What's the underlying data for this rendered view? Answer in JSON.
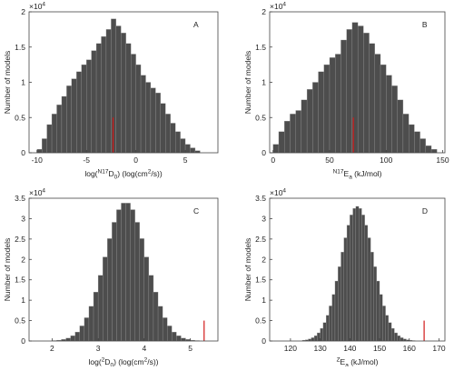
{
  "chart_data": [
    {
      "type": "histogram",
      "label": "A",
      "ylabel": "Number of models",
      "y_multiplier": [
        "×10",
        {
          "text": "4",
          "shift": "super"
        }
      ],
      "xlabel": [
        "log(",
        {
          "text": "N17",
          "shift": "super"
        },
        "D",
        {
          "text": "0",
          "shift": "sub"
        },
        ") (log(cm",
        {
          "text": "2",
          "shift": "super"
        },
        "/s))"
      ],
      "color": "#4d4d4d",
      "bins": [
        -10,
        -9.5,
        -9,
        -8.5,
        -8,
        -7.5,
        -7,
        -6.5,
        -6,
        -5.5,
        -5,
        -4.5,
        -4,
        -3.5,
        -3,
        -2.5,
        -2,
        -1.5,
        -1,
        -0.5,
        0,
        0.5,
        1,
        1.5,
        2,
        2.5,
        3,
        3.5,
        4,
        4.5,
        5,
        5.5,
        6,
        6.5
      ],
      "counts": [
        0.05,
        0.2,
        0.4,
        0.55,
        0.68,
        0.8,
        0.95,
        1.05,
        1.15,
        1.25,
        1.32,
        1.45,
        1.55,
        1.65,
        1.75,
        1.9,
        1.8,
        1.7,
        1.55,
        1.4,
        1.25,
        1.1,
        1.0,
        0.92,
        0.85,
        0.7,
        0.55,
        0.42,
        0.3,
        0.2,
        0.12,
        0.07,
        0.03
      ],
      "marker": {
        "x": -2.3,
        "height": 0.5,
        "color": "#d11a1a"
      },
      "xlim": [
        -10.8,
        8.3
      ],
      "xticks": [
        -10,
        -5,
        0,
        5
      ],
      "ylim": [
        0,
        2
      ],
      "yticks": [
        0,
        0.5,
        1,
        1.5,
        2
      ]
    },
    {
      "type": "histogram",
      "label": "B",
      "ylabel": "Number of models",
      "y_multiplier": [
        "×10",
        {
          "text": "4",
          "shift": "super"
        }
      ],
      "xlabel": [
        {
          "text": "N17",
          "shift": "super"
        },
        "E",
        {
          "text": "a",
          "shift": "sub"
        },
        " (kJ/mol)"
      ],
      "color": "#4d4d4d",
      "bins": [
        0,
        5,
        10,
        15,
        20,
        25,
        30,
        35,
        40,
        45,
        50,
        55,
        60,
        65,
        70,
        75,
        80,
        85,
        90,
        95,
        100,
        105,
        110,
        115,
        120,
        125,
        130,
        135,
        140,
        145
      ],
      "counts": [
        0.12,
        0.3,
        0.45,
        0.55,
        0.6,
        0.75,
        0.9,
        1.0,
        1.15,
        1.25,
        1.35,
        1.4,
        1.6,
        1.75,
        1.85,
        1.8,
        1.7,
        1.55,
        1.4,
        1.25,
        1.1,
        0.95,
        0.75,
        0.55,
        0.4,
        0.3,
        0.2,
        0.1,
        0.05
      ],
      "marker": {
        "x": 71,
        "height": 0.5,
        "color": "#d11a1a"
      },
      "xlim": [
        -3,
        152
      ],
      "xticks": [
        0,
        50,
        100,
        150
      ],
      "ylim": [
        0,
        2
      ],
      "yticks": [
        0,
        0.5,
        1,
        1.5,
        2
      ]
    },
    {
      "type": "histogram",
      "label": "C",
      "ylabel": "Number of models",
      "y_multiplier": [
        "×10",
        {
          "text": "4",
          "shift": "super"
        }
      ],
      "xlabel": [
        "log(",
        {
          "text": "2",
          "shift": "super"
        },
        "D",
        {
          "text": "0",
          "shift": "sub"
        },
        ") (log(cm",
        {
          "text": "2",
          "shift": "super"
        },
        "/s))"
      ],
      "color": "#4d4d4d",
      "bins": [
        1.8,
        1.9,
        2.0,
        2.1,
        2.2,
        2.3,
        2.4,
        2.5,
        2.6,
        2.7,
        2.8,
        2.9,
        3.0,
        3.1,
        3.2,
        3.3,
        3.4,
        3.5,
        3.6,
        3.7,
        3.8,
        3.9,
        4.0,
        4.1,
        4.2,
        4.3,
        4.4,
        4.5,
        4.6,
        4.7,
        4.8,
        4.9,
        5.0,
        5.1,
        5.2,
        5.3,
        5.4
      ],
      "counts": [
        0.0,
        0.0,
        0.01,
        0.02,
        0.04,
        0.07,
        0.13,
        0.22,
        0.37,
        0.57,
        0.85,
        1.2,
        1.61,
        2.06,
        2.51,
        2.91,
        3.22,
        3.38,
        3.38,
        3.22,
        2.91,
        2.51,
        2.06,
        1.61,
        1.2,
        0.85,
        0.57,
        0.37,
        0.22,
        0.13,
        0.07,
        0.04,
        0.02,
        0.01,
        0.0,
        0.0
      ],
      "marker": {
        "x": 5.3,
        "height": 0.5,
        "color": "#d11a1a"
      },
      "xlim": [
        1.5,
        5.6
      ],
      "xticks": [
        2,
        3,
        4,
        5
      ],
      "ylim": [
        0,
        3.5
      ],
      "yticks": [
        0,
        0.5,
        1,
        1.5,
        2,
        2.5,
        3,
        3.5
      ]
    },
    {
      "type": "histogram",
      "label": "D",
      "ylabel": "Number of models",
      "y_multiplier": [
        "×10",
        {
          "text": "4",
          "shift": "super"
        }
      ],
      "xlabel": [
        {
          "text": "Z",
          "shift": "super"
        },
        "E",
        {
          "text": "a",
          "shift": "sub"
        },
        " (kJ/mol)"
      ],
      "color": "#4d4d4d",
      "bins": [
        124,
        125,
        126,
        127,
        128,
        129,
        130,
        131,
        132,
        133,
        134,
        135,
        136,
        137,
        138,
        139,
        140,
        141,
        142,
        143,
        144,
        145,
        146,
        147,
        148,
        149,
        150,
        151,
        152,
        153,
        154,
        155,
        156,
        157,
        158,
        159,
        160,
        161,
        162
      ],
      "counts": [
        0.02,
        0.03,
        0.05,
        0.08,
        0.13,
        0.2,
        0.31,
        0.45,
        0.63,
        0.86,
        1.14,
        1.47,
        1.82,
        2.18,
        2.53,
        2.84,
        3.09,
        3.25,
        3.3,
        3.25,
        3.09,
        2.84,
        2.53,
        2.18,
        1.82,
        1.47,
        1.14,
        0.86,
        0.63,
        0.45,
        0.31,
        0.2,
        0.13,
        0.08,
        0.05,
        0.03,
        0.02,
        0.01
      ],
      "marker": {
        "x": 165,
        "height": 0.5,
        "color": "#d11a1a"
      },
      "xlim": [
        113,
        172
      ],
      "xticks": [
        120,
        130,
        140,
        150,
        160,
        170
      ],
      "ylim": [
        0,
        3.5
      ],
      "yticks": [
        0,
        0.5,
        1,
        1.5,
        2,
        2.5,
        3,
        3.5
      ]
    }
  ]
}
